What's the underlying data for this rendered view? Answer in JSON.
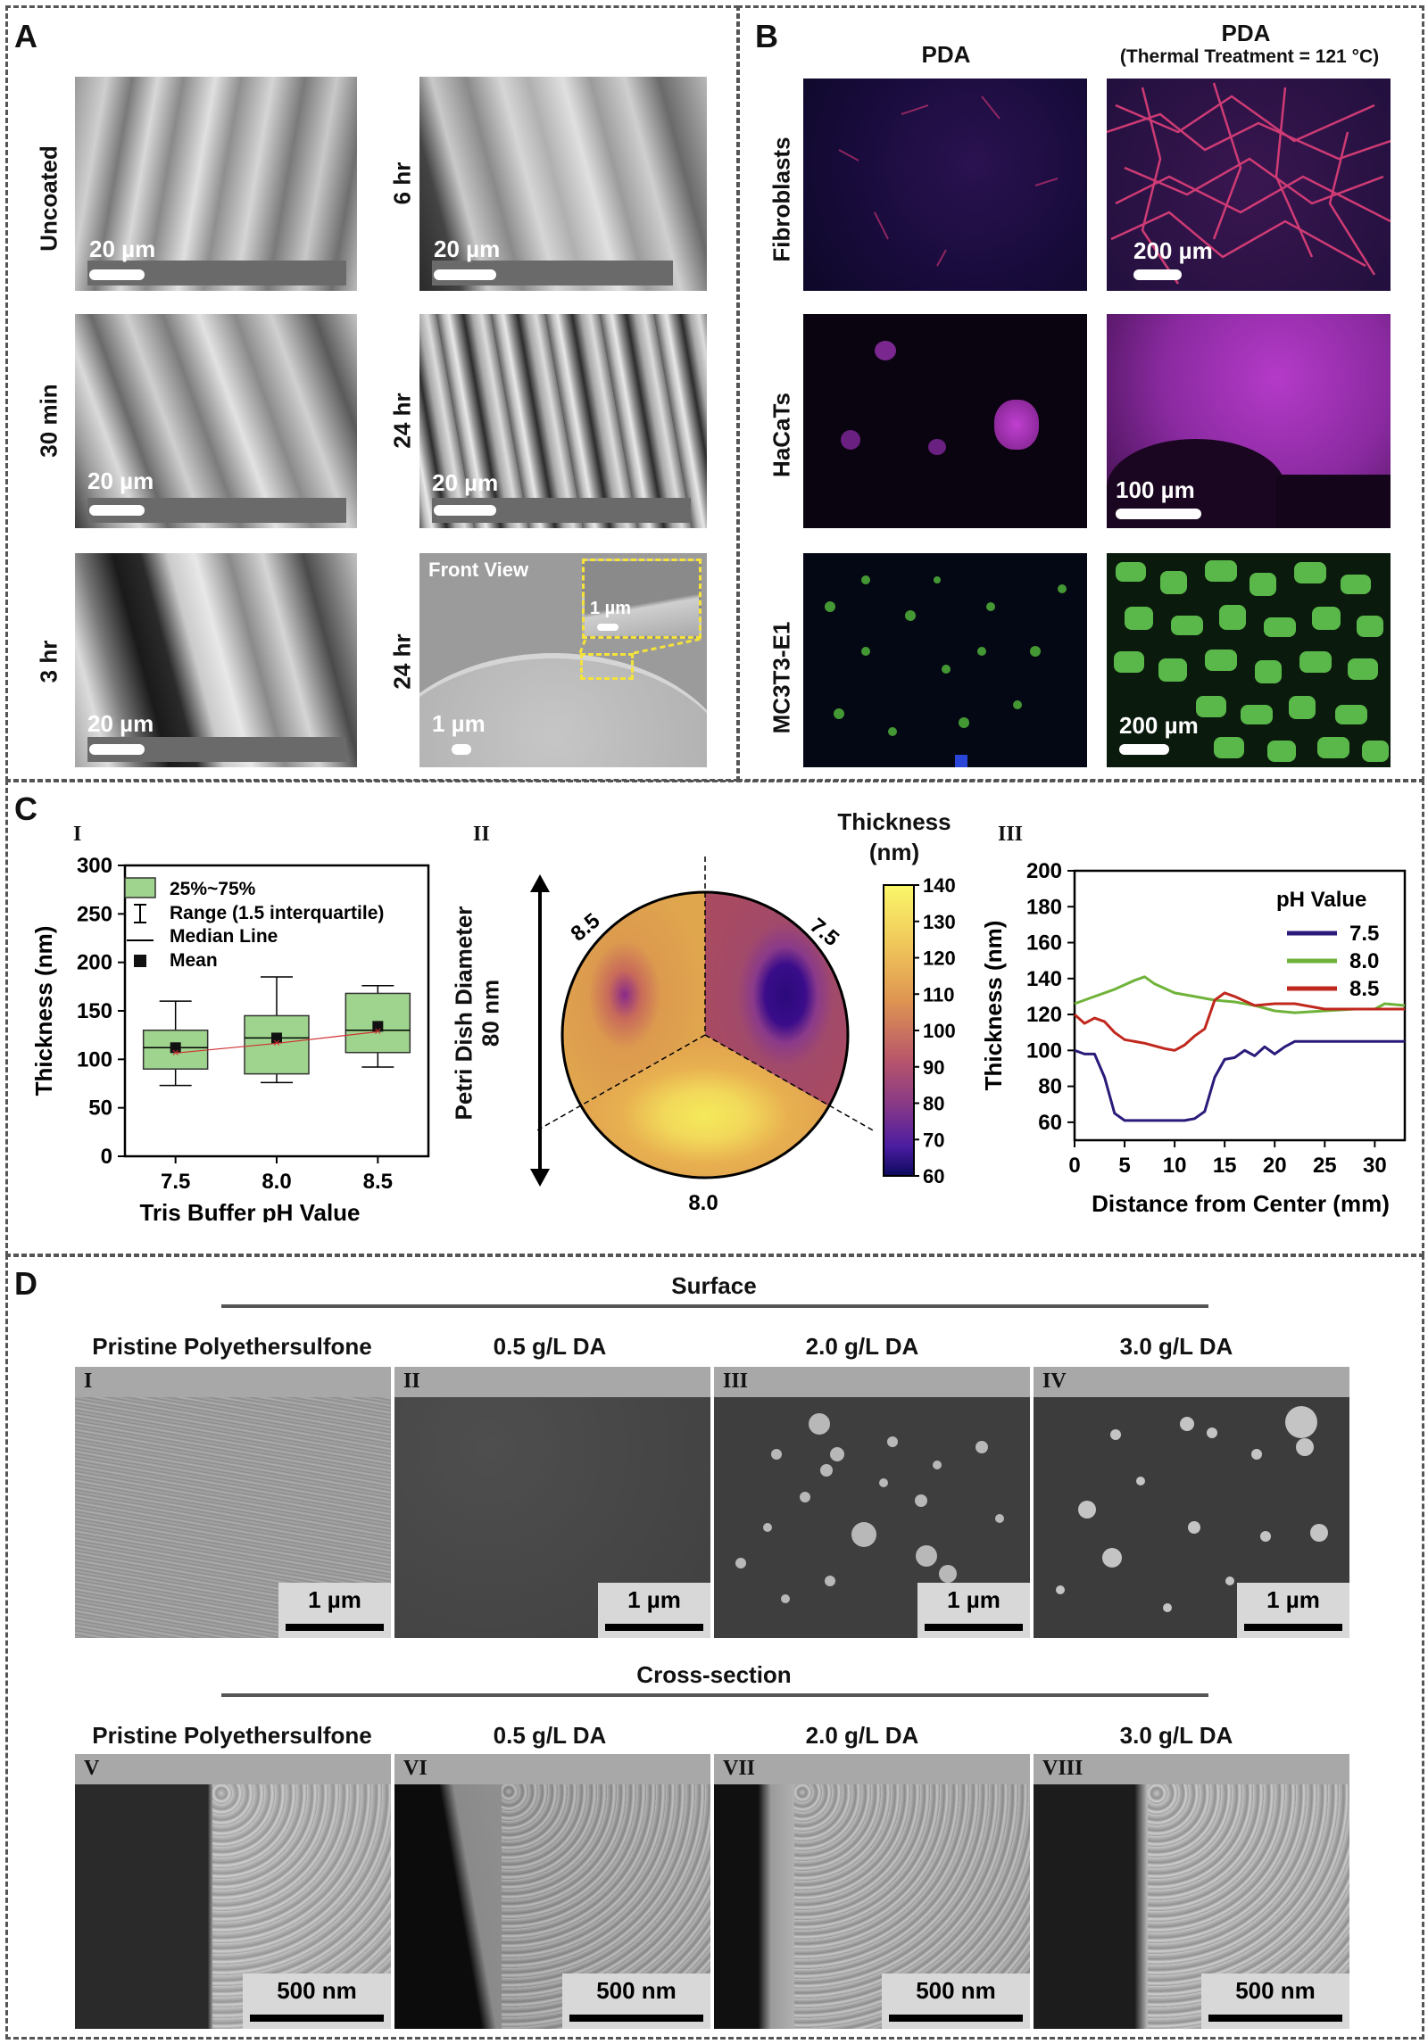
{
  "panels": {
    "A": "A",
    "B": "B",
    "C": "C",
    "D": "D"
  },
  "panelA": {
    "rows": [
      {
        "left": "Uncoated",
        "right": "6 hr"
      },
      {
        "left": "30 min",
        "right": "24 hr"
      },
      {
        "left": "3 hr",
        "right": "24 hr"
      }
    ],
    "scale_20": "20 µm",
    "scale_1": "1 µm",
    "front_view": "Front View"
  },
  "panelB": {
    "col_left": "PDA",
    "col_right": "PDA",
    "col_right_sub": "(Thermal Treatment = 121 °C)",
    "rows": [
      "Fibroblasts",
      "HaCaTs",
      "MC3T3-E1"
    ],
    "scales": [
      "200 µm",
      "100 µm",
      "200 µm"
    ]
  },
  "panelC": {
    "I": "I",
    "II": "II",
    "III": "III",
    "box": {
      "legend": [
        "25%~75%",
        "Range (1.5 interquartile)",
        "Median Line",
        "Mean"
      ],
      "ylabel": "Thickness (nm)",
      "xlabel": "Tris Buffer pH Value",
      "yticks": [
        "0",
        "50",
        "100",
        "150",
        "200",
        "250",
        "300"
      ],
      "xticks": [
        "7.5",
        "8.0",
        "8.5"
      ]
    },
    "petri": {
      "title1": "Thickness",
      "title2": "(nm)",
      "axis1": "Petri Dish Diameter",
      "axis2": "80 nm",
      "labels": [
        "8.5",
        "7.5",
        "8.0"
      ],
      "cbar_ticks": [
        "140",
        "130",
        "120",
        "110",
        "100",
        "90",
        "80",
        "70",
        "60"
      ]
    },
    "line": {
      "ylabel": "Thickness (nm)",
      "xlabel": "Distance from Center (mm)",
      "legend_title": "pH Value",
      "series": [
        "7.5",
        "8.0",
        "8.5"
      ],
      "yticks": [
        "60",
        "80",
        "100",
        "120",
        "140",
        "160",
        "180",
        "200"
      ],
      "xticks": [
        "0",
        "5",
        "10",
        "15",
        "20",
        "25",
        "30"
      ]
    }
  },
  "panelD": {
    "surface": "Surface",
    "cross": "Cross-section",
    "cols": [
      "Pristine Polyethersulfone",
      "0.5 g/L DA",
      "2.0 g/L DA",
      "3.0 g/L DA"
    ],
    "top_tags": [
      "I",
      "II",
      "III",
      "IV"
    ],
    "bot_tags": [
      "V",
      "VI",
      "VII",
      "VIII"
    ],
    "scale_top": "1 µm",
    "scale_bot": "500 nm"
  },
  "chart_data": [
    {
      "type": "box",
      "ylabel": "Thickness (nm)",
      "xlabel": "Tris Buffer pH Value",
      "categories": [
        "7.5",
        "8.0",
        "8.5"
      ],
      "ylim": [
        0,
        300
      ],
      "boxes": [
        {
          "q1": 90,
          "median": 112,
          "q3": 130,
          "min": 73,
          "max": 160,
          "mean": 112
        },
        {
          "q1": 85,
          "median": 122,
          "q3": 145,
          "min": 76,
          "max": 185,
          "mean": 122
        },
        {
          "q1": 107,
          "median": 130,
          "q3": 168,
          "min": 92,
          "max": 176,
          "mean": 134
        }
      ]
    },
    {
      "type": "line",
      "xlabel": "Distance from Center (mm)",
      "ylabel": "Thickness (nm)",
      "xlim": [
        0,
        33
      ],
      "ylim": [
        50,
        200
      ],
      "legend_title": "pH Value",
      "series": [
        {
          "name": "7.5",
          "color": "#2b1a7a",
          "x": [
            0,
            1,
            2,
            3,
            4,
            5,
            7,
            9,
            10,
            11,
            12,
            13,
            14,
            15,
            16,
            17,
            18,
            19,
            20,
            21,
            22,
            25,
            30,
            33
          ],
          "y": [
            100,
            98,
            98,
            85,
            65,
            61,
            61,
            61,
            61,
            61,
            62,
            66,
            85,
            95,
            96,
            100,
            97,
            102,
            98,
            102,
            105,
            105,
            105,
            105
          ]
        },
        {
          "name": "8.0",
          "color": "#6fb33a",
          "x": [
            0,
            2,
            4,
            6,
            7,
            8,
            10,
            12,
            14,
            16,
            18,
            20,
            22,
            25,
            28,
            30,
            31,
            33
          ],
          "y": [
            126,
            130,
            134,
            139,
            141,
            137,
            132,
            130,
            128,
            127,
            125,
            122,
            121,
            122,
            123,
            123,
            126,
            125
          ]
        },
        {
          "name": "8.5",
          "color": "#c0281e",
          "x": [
            0,
            1,
            2,
            3,
            4,
            5,
            7,
            9,
            10,
            11,
            12,
            13,
            14,
            15,
            16,
            18,
            20,
            22,
            25,
            30,
            33
          ],
          "y": [
            120,
            115,
            118,
            116,
            110,
            106,
            104,
            101,
            100,
            103,
            108,
            112,
            128,
            132,
            130,
            125,
            126,
            126,
            123,
            123,
            123
          ]
        }
      ]
    }
  ]
}
